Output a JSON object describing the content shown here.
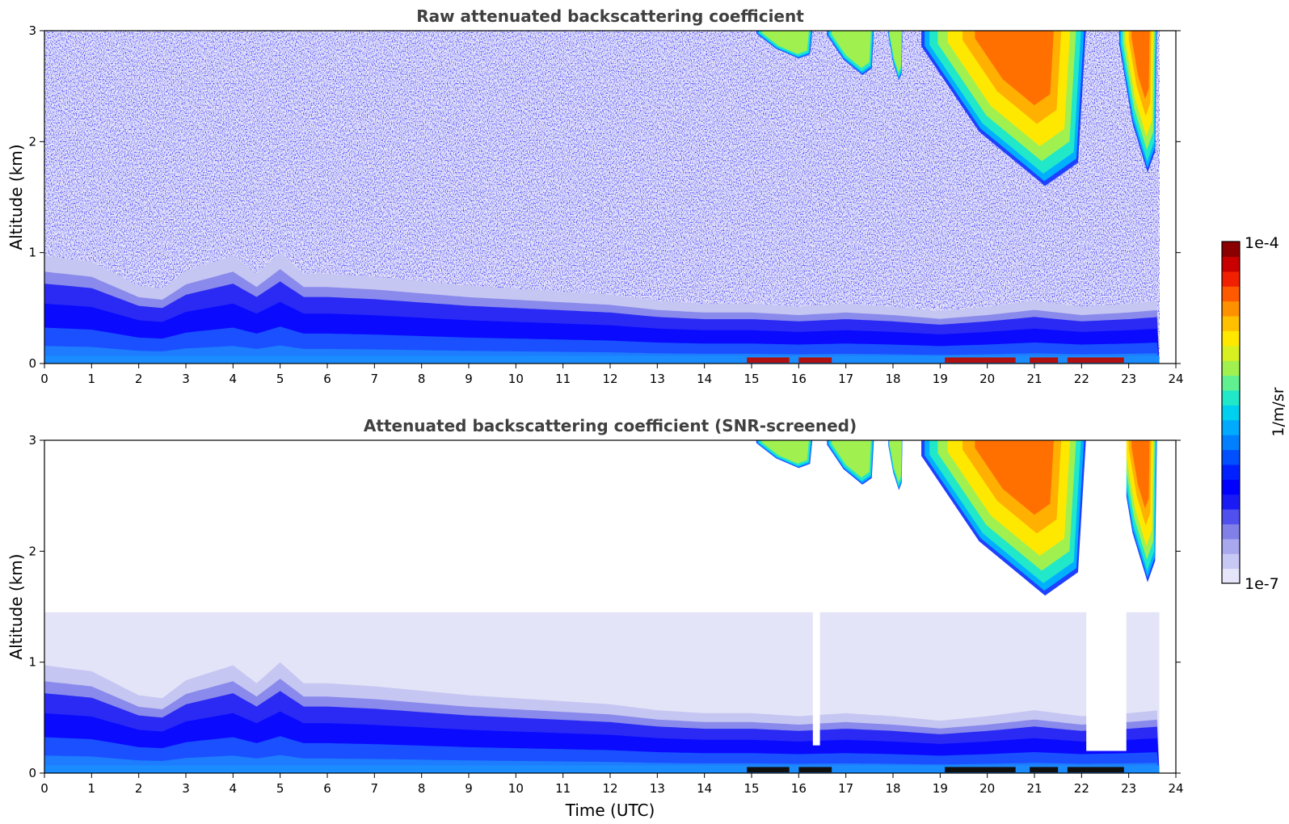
{
  "chart_data": [
    {
      "type": "heatmap",
      "title": "Raw attenuated backscattering coefficient",
      "xlabel": "",
      "ylabel": "Altitude (km)",
      "xlim": [
        0,
        24
      ],
      "ylim": [
        0,
        3
      ],
      "xticks": [
        "0",
        "1",
        "2",
        "3",
        "4",
        "5",
        "6",
        "7",
        "8",
        "9",
        "10",
        "11",
        "12",
        "13",
        "14",
        "15",
        "16",
        "17",
        "18",
        "19",
        "20",
        "21",
        "22",
        "23",
        "24"
      ],
      "yticks": [
        "0",
        "1",
        "2",
        "3"
      ],
      "screened": false,
      "boundary_layer_top_km": {
        "hours": [
          0,
          1,
          2,
          2.5,
          3,
          4,
          4.5,
          5,
          5.5,
          6,
          7,
          8,
          9,
          10,
          11,
          12,
          13,
          14,
          15,
          16,
          17,
          18,
          19,
          20,
          21,
          22,
          23,
          23.65
        ],
        "values": [
          0.72,
          0.68,
          0.52,
          0.5,
          0.62,
          0.72,
          0.6,
          0.74,
          0.6,
          0.6,
          0.58,
          0.55,
          0.52,
          0.5,
          0.48,
          0.46,
          0.42,
          0.4,
          0.4,
          0.38,
          0.4,
          0.38,
          0.35,
          0.38,
          0.42,
          0.38,
          0.4,
          0.42
        ]
      },
      "cirrus_clouds": [
        {
          "start_h": 15.1,
          "end_h": 16.3,
          "base_km": 2.75
        },
        {
          "start_h": 16.6,
          "end_h": 17.6,
          "base_km": 2.6
        },
        {
          "start_h": 17.9,
          "end_h": 18.2,
          "base_km": 2.55
        },
        {
          "start_h": 18.6,
          "end_h": 22.1,
          "base_km": 1.6
        },
        {
          "start_h": 22.8,
          "end_h": 23.6,
          "base_km": 1.72
        }
      ],
      "near_surface_strong_echo": [
        [
          14.9,
          15.8
        ],
        [
          16.0,
          16.7
        ],
        [
          19.1,
          20.6
        ],
        [
          20.9,
          21.5
        ],
        [
          21.7,
          22.9
        ]
      ]
    },
    {
      "type": "heatmap",
      "title": "Attenuated backscattering coefficient (SNR-screened)",
      "xlabel": "Time (UTC)",
      "ylabel": "Altitude (km)",
      "xlim": [
        0,
        24
      ],
      "ylim": [
        0,
        3
      ],
      "xticks": [
        "0",
        "1",
        "2",
        "3",
        "4",
        "5",
        "6",
        "7",
        "8",
        "9",
        "10",
        "11",
        "12",
        "13",
        "14",
        "15",
        "16",
        "17",
        "18",
        "19",
        "20",
        "21",
        "22",
        "23",
        "24"
      ],
      "yticks": [
        "0",
        "1",
        "2",
        "3"
      ],
      "screened": true,
      "screened_aerosol_top_km": 1.45,
      "masked_gaps": [
        {
          "start_h": 16.3,
          "end_h": 16.45,
          "floor_km": 0.25
        },
        {
          "start_h": 22.1,
          "end_h": 22.95,
          "floor_km": 0.2
        }
      ]
    }
  ],
  "colorbar": {
    "label": "1/m/sr",
    "max_label": "1e-4",
    "min_label": "1e-7",
    "scale": "log",
    "range": [
      1e-07,
      0.0001
    ],
    "colors": [
      "#e6e6fa",
      "#c8c8f4",
      "#a8a8ee",
      "#8080e8",
      "#5050ee",
      "#1a1af5",
      "#0000ff",
      "#0020ff",
      "#0050ff",
      "#0080ff",
      "#00aaff",
      "#00d0f0",
      "#20e8c8",
      "#60f090",
      "#a0f050",
      "#d8f020",
      "#ffe800",
      "#ffc000",
      "#ff9000",
      "#ff5a00",
      "#f02000",
      "#c80000",
      "#8b0000"
    ]
  }
}
